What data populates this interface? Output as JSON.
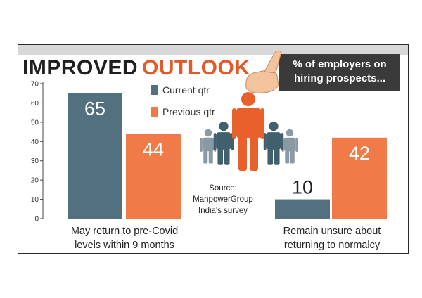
{
  "header": {
    "title_part1": "IMPROVED",
    "title_part2": "OUTLOOK",
    "callout_line1": "% of employers on",
    "callout_line2": "hiring prospects..."
  },
  "source": {
    "line1": "Source:",
    "line2": "ManpowerGroup",
    "line3": "India's survey"
  },
  "colors": {
    "current": "#53707e",
    "previous": "#f07a48",
    "accent": "#e25a2a",
    "callout_bg": "#3a3a3a"
  },
  "chart_data": {
    "type": "bar",
    "title": "IMPROVED OUTLOOK",
    "subtitle": "% of employers on hiring prospects...",
    "categories": [
      [
        "May return to pre-Covid",
        "levels within 9 months"
      ],
      [
        "Remain unsure about",
        "returning to normalcy"
      ]
    ],
    "series": [
      {
        "name": "Current qtr",
        "color": "#53707e",
        "values": [
          65,
          10
        ]
      },
      {
        "name": "Previous qtr",
        "color": "#f07a48",
        "values": [
          44,
          42
        ]
      }
    ],
    "yticks": [
      "0",
      "10",
      "20",
      "30",
      "40",
      "50",
      "60",
      "70"
    ],
    "ylim": [
      0,
      70
    ],
    "xlabel": "",
    "ylabel": "",
    "grid": false,
    "legend_position": "top-center"
  }
}
